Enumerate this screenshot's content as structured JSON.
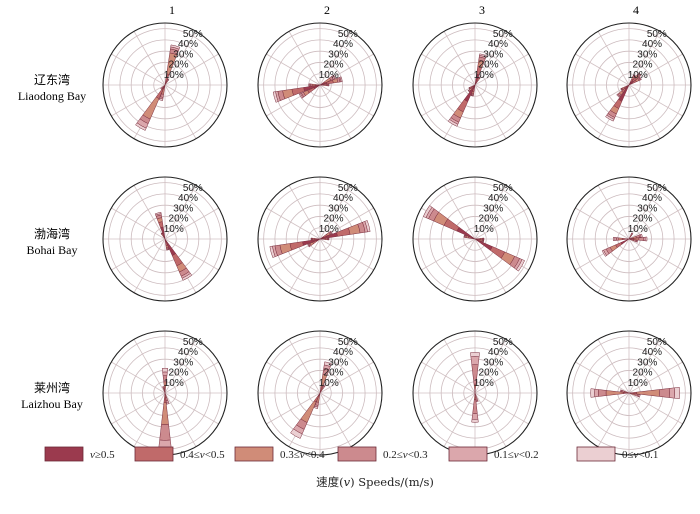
{
  "chart_data": {
    "type": "polar_rose",
    "description_units": "percent frequency by direction (degrees clockwise from north), stacked by speed class",
    "rings": [
      "10%",
      "20%",
      "30%",
      "40%",
      "50%"
    ],
    "ring_values": [
      10,
      20,
      30,
      40,
      50
    ],
    "columns": [
      "1",
      "2",
      "3",
      "4"
    ],
    "rows": [
      {
        "label_cn": "辽东湾",
        "label_en": "Liaodong Bay"
      },
      {
        "label_cn": "渤海湾",
        "label_en": "Bohai Bay"
      },
      {
        "label_cn": "莱州湾",
        "label_en": "Laizhou Bay"
      }
    ],
    "speed_classes": [
      {
        "label_pre": "",
        "label_var": "v",
        "label_post": "≥0.5",
        "color": "#9b3a4e"
      },
      {
        "label_pre": "0.4≤",
        "label_var": "v",
        "label_post": "<0.5",
        "color": "#c06a6a"
      },
      {
        "label_pre": "0.3≤",
        "label_var": "v",
        "label_post": "<0.4",
        "color": "#d08c78"
      },
      {
        "label_pre": "0.2≤",
        "label_var": "v",
        "label_post": "<0.3",
        "color": "#cc8a8e"
      },
      {
        "label_pre": "0.1≤",
        "label_var": "v",
        "label_post": "<0.2",
        "color": "#dba7ac"
      },
      {
        "label_pre": "0≤",
        "label_var": "v",
        "label_post": "<0.1",
        "color": "#ebcfd2"
      }
    ],
    "axis_title_cn": "速度(",
    "axis_title_var": "v",
    "axis_title_rest": ") Speeds/(m/s)",
    "panels": [
      {
        "row": 0,
        "col": 0,
        "petals": [
          {
            "dir": 15,
            "total": 36,
            "fracs": [
              0.1,
              0.18,
              0.52,
              0.1,
              0.05,
              0.05
            ]
          },
          {
            "dir": 30,
            "total": 6,
            "fracs": [
              0.1,
              0.2,
              0.3,
              0.2,
              0.1,
              0.1
            ]
          },
          {
            "dir": 195,
            "total": 14,
            "fracs": [
              0.05,
              0.15,
              0.4,
              0.2,
              0.1,
              0.1
            ]
          },
          {
            "dir": 210,
            "total": 44,
            "fracs": [
              0.1,
              0.2,
              0.45,
              0.1,
              0.1,
              0.05
            ]
          },
          {
            "dir": 225,
            "total": 5,
            "fracs": [
              0.1,
              0.2,
              0.3,
              0.2,
              0.1,
              0.1
            ]
          }
        ]
      },
      {
        "row": 0,
        "col": 1,
        "petals": [
          {
            "dir": 60,
            "total": 15,
            "fracs": [
              0.1,
              0.2,
              0.4,
              0.15,
              0.1,
              0.05
            ]
          },
          {
            "dir": 75,
            "total": 20,
            "fracs": [
              0.3,
              0.3,
              0.2,
              0.1,
              0.05,
              0.05
            ]
          },
          {
            "dir": 90,
            "total": 8,
            "fracs": [
              0.2,
              0.2,
              0.3,
              0.15,
              0.1,
              0.05
            ]
          },
          {
            "dir": 240,
            "total": 20,
            "fracs": [
              0.3,
              0.3,
              0.2,
              0.1,
              0.05,
              0.05
            ]
          },
          {
            "dir": 255,
            "total": 42,
            "fracs": [
              0.35,
              0.25,
              0.2,
              0.1,
              0.05,
              0.05
            ]
          },
          {
            "dir": 270,
            "total": 10,
            "fracs": [
              0.2,
              0.2,
              0.3,
              0.15,
              0.1,
              0.05
            ]
          }
        ]
      },
      {
        "row": 0,
        "col": 2,
        "petals": [
          {
            "dir": 15,
            "total": 28,
            "fracs": [
              0.35,
              0.25,
              0.2,
              0.1,
              0.05,
              0.05
            ]
          },
          {
            "dir": 30,
            "total": 8,
            "fracs": [
              0.3,
              0.3,
              0.2,
              0.1,
              0.05,
              0.05
            ]
          },
          {
            "dir": 195,
            "total": 10,
            "fracs": [
              0.3,
              0.3,
              0.2,
              0.1,
              0.05,
              0.05
            ]
          },
          {
            "dir": 210,
            "total": 40,
            "fracs": [
              0.4,
              0.25,
              0.15,
              0.1,
              0.05,
              0.05
            ]
          },
          {
            "dir": 225,
            "total": 8,
            "fracs": [
              0.3,
              0.3,
              0.2,
              0.1,
              0.05,
              0.05
            ]
          },
          {
            "dir": 240,
            "total": 6,
            "fracs": [
              0.3,
              0.3,
              0.2,
              0.1,
              0.05,
              0.05
            ]
          }
        ]
      },
      {
        "row": 0,
        "col": 3,
        "petals": [
          {
            "dir": 30,
            "total": 10,
            "fracs": [
              0.3,
              0.3,
              0.2,
              0.1,
              0.05,
              0.05
            ]
          },
          {
            "dir": 45,
            "total": 14,
            "fracs": [
              0.35,
              0.25,
              0.2,
              0.1,
              0.05,
              0.05
            ]
          },
          {
            "dir": 60,
            "total": 12,
            "fracs": [
              0.3,
              0.3,
              0.2,
              0.1,
              0.05,
              0.05
            ]
          },
          {
            "dir": 210,
            "total": 35,
            "fracs": [
              0.45,
              0.2,
              0.15,
              0.1,
              0.05,
              0.05
            ]
          },
          {
            "dir": 225,
            "total": 14,
            "fracs": [
              0.35,
              0.25,
              0.2,
              0.1,
              0.05,
              0.05
            ]
          },
          {
            "dir": 240,
            "total": 8,
            "fracs": [
              0.3,
              0.3,
              0.2,
              0.1,
              0.05,
              0.05
            ]
          }
        ]
      },
      {
        "row": 1,
        "col": 0,
        "petals": [
          {
            "dir": 345,
            "total": 24,
            "fracs": [
              0.45,
              0.2,
              0.15,
              0.1,
              0.05,
              0.05
            ]
          },
          {
            "dir": 330,
            "total": 6,
            "fracs": [
              0.3,
              0.3,
              0.2,
              0.1,
              0.05,
              0.05
            ]
          },
          {
            "dir": 150,
            "total": 40,
            "fracs": [
              0.4,
              0.25,
              0.15,
              0.1,
              0.05,
              0.05
            ]
          },
          {
            "dir": 165,
            "total": 10,
            "fracs": [
              0.3,
              0.3,
              0.2,
              0.1,
              0.05,
              0.05
            ]
          }
        ]
      },
      {
        "row": 1,
        "col": 1,
        "petals": [
          {
            "dir": 60,
            "total": 12,
            "fracs": [
              0.3,
              0.3,
              0.2,
              0.1,
              0.05,
              0.05
            ]
          },
          {
            "dir": 75,
            "total": 45,
            "fracs": [
              0.35,
              0.25,
              0.2,
              0.1,
              0.05,
              0.05
            ]
          },
          {
            "dir": 90,
            "total": 8,
            "fracs": [
              0.3,
              0.3,
              0.2,
              0.1,
              0.05,
              0.05
            ]
          },
          {
            "dir": 240,
            "total": 12,
            "fracs": [
              0.3,
              0.3,
              0.2,
              0.1,
              0.05,
              0.05
            ]
          },
          {
            "dir": 255,
            "total": 45,
            "fracs": [
              0.35,
              0.25,
              0.2,
              0.1,
              0.05,
              0.05
            ]
          },
          {
            "dir": 270,
            "total": 8,
            "fracs": [
              0.3,
              0.3,
              0.2,
              0.1,
              0.05,
              0.05
            ]
          }
        ]
      },
      {
        "row": 1,
        "col": 2,
        "petals": [
          {
            "dir": 285,
            "total": 10,
            "fracs": [
              0.3,
              0.3,
              0.2,
              0.1,
              0.05,
              0.05
            ]
          },
          {
            "dir": 300,
            "total": 50,
            "fracs": [
              0.35,
              0.25,
              0.2,
              0.1,
              0.05,
              0.05
            ]
          },
          {
            "dir": 90,
            "total": 8,
            "fracs": [
              0.3,
              0.3,
              0.2,
              0.1,
              0.05,
              0.05
            ]
          },
          {
            "dir": 120,
            "total": 48,
            "fracs": [
              0.35,
              0.25,
              0.2,
              0.1,
              0.05,
              0.05
            ]
          },
          {
            "dir": 105,
            "total": 8,
            "fracs": [
              0.3,
              0.3,
              0.2,
              0.1,
              0.05,
              0.05
            ]
          }
        ]
      },
      {
        "row": 1,
        "col": 3,
        "petals": [
          {
            "dir": 75,
            "total": 12,
            "fracs": [
              0.1,
              0.15,
              0.3,
              0.25,
              0.1,
              0.1
            ]
          },
          {
            "dir": 90,
            "total": 16,
            "fracs": [
              0.1,
              0.15,
              0.3,
              0.25,
              0.1,
              0.1
            ]
          },
          {
            "dir": 105,
            "total": 8,
            "fracs": [
              0.1,
              0.15,
              0.3,
              0.25,
              0.1,
              0.1
            ]
          },
          {
            "dir": 240,
            "total": 26,
            "fracs": [
              0.3,
              0.2,
              0.2,
              0.15,
              0.1,
              0.05
            ]
          },
          {
            "dir": 270,
            "total": 14,
            "fracs": [
              0.2,
              0.2,
              0.25,
              0.15,
              0.1,
              0.1
            ]
          },
          {
            "dir": 30,
            "total": 6,
            "fracs": [
              0.2,
              0.2,
              0.25,
              0.15,
              0.1,
              0.1
            ]
          }
        ]
      },
      {
        "row": 2,
        "col": 0,
        "petals": [
          {
            "dir": 0,
            "total": 22,
            "fracs": [
              0.05,
              0.1,
              0.3,
              0.25,
              0.15,
              0.15
            ]
          },
          {
            "dir": 180,
            "total": 56,
            "fracs": [
              0.05,
              0.1,
              0.35,
              0.25,
              0.15,
              0.1
            ]
          },
          {
            "dir": 165,
            "total": 10,
            "fracs": [
              0.05,
              0.1,
              0.3,
              0.25,
              0.15,
              0.15
            ]
          },
          {
            "dir": 345,
            "total": 6,
            "fracs": [
              0.05,
              0.1,
              0.3,
              0.25,
              0.15,
              0.15
            ]
          }
        ]
      },
      {
        "row": 2,
        "col": 1,
        "petals": [
          {
            "dir": 15,
            "total": 28,
            "fracs": [
              0.05,
              0.15,
              0.4,
              0.2,
              0.1,
              0.1
            ]
          },
          {
            "dir": 30,
            "total": 8,
            "fracs": [
              0.05,
              0.15,
              0.4,
              0.2,
              0.1,
              0.1
            ]
          },
          {
            "dir": 195,
            "total": 14,
            "fracs": [
              0.05,
              0.15,
              0.4,
              0.2,
              0.1,
              0.1
            ]
          },
          {
            "dir": 210,
            "total": 44,
            "fracs": [
              0.05,
              0.15,
              0.45,
              0.15,
              0.1,
              0.1
            ]
          }
        ]
      },
      {
        "row": 2,
        "col": 2,
        "petals": [
          {
            "dir": 0,
            "total": 36,
            "fracs": [
              0.02,
              0.05,
              0.15,
              0.48,
              0.2,
              0.1
            ]
          },
          {
            "dir": 180,
            "total": 26,
            "fracs": [
              0.02,
              0.05,
              0.15,
              0.48,
              0.2,
              0.1
            ]
          },
          {
            "dir": 165,
            "total": 8,
            "fracs": [
              0.02,
              0.05,
              0.15,
              0.48,
              0.2,
              0.1
            ]
          }
        ]
      },
      {
        "row": 2,
        "col": 3,
        "petals": [
          {
            "dir": 90,
            "total": 45,
            "fracs": [
              0.05,
              0.1,
              0.45,
              0.2,
              0.1,
              0.1
            ]
          },
          {
            "dir": 105,
            "total": 10,
            "fracs": [
              0.05,
              0.1,
              0.4,
              0.25,
              0.1,
              0.1
            ]
          },
          {
            "dir": 270,
            "total": 34,
            "fracs": [
              0.05,
              0.1,
              0.45,
              0.2,
              0.1,
              0.1
            ]
          },
          {
            "dir": 285,
            "total": 8,
            "fracs": [
              0.05,
              0.1,
              0.4,
              0.25,
              0.1,
              0.1
            ]
          }
        ]
      }
    ]
  }
}
